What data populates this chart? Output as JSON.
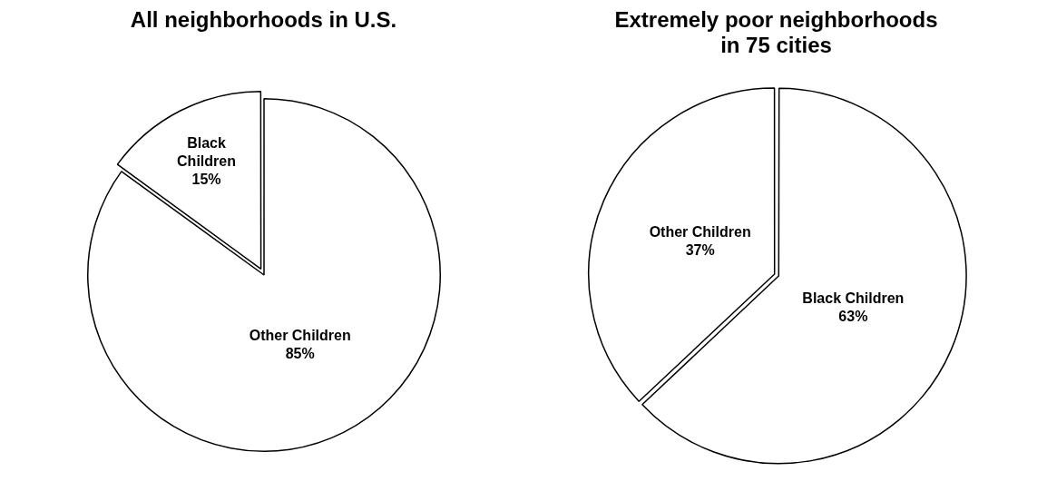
{
  "chart_data": [
    {
      "type": "pie",
      "title": "All neighborhoods in U.S.",
      "categories": [
        "Black Children",
        "Other Children"
      ],
      "values": [
        15,
        85
      ],
      "colors": [
        "#ffffff",
        "#ffffff"
      ],
      "value_labels": [
        "15%",
        "85%"
      ],
      "legend": false
    },
    {
      "type": "pie",
      "title": "Extremely poor neighborhoods in 75 cities",
      "categories": [
        "Black Children",
        "Other Children"
      ],
      "values": [
        63,
        37
      ],
      "colors": [
        "#ffffff",
        "#ffffff"
      ],
      "value_labels": [
        "63%",
        "37%"
      ],
      "legend": false
    }
  ]
}
